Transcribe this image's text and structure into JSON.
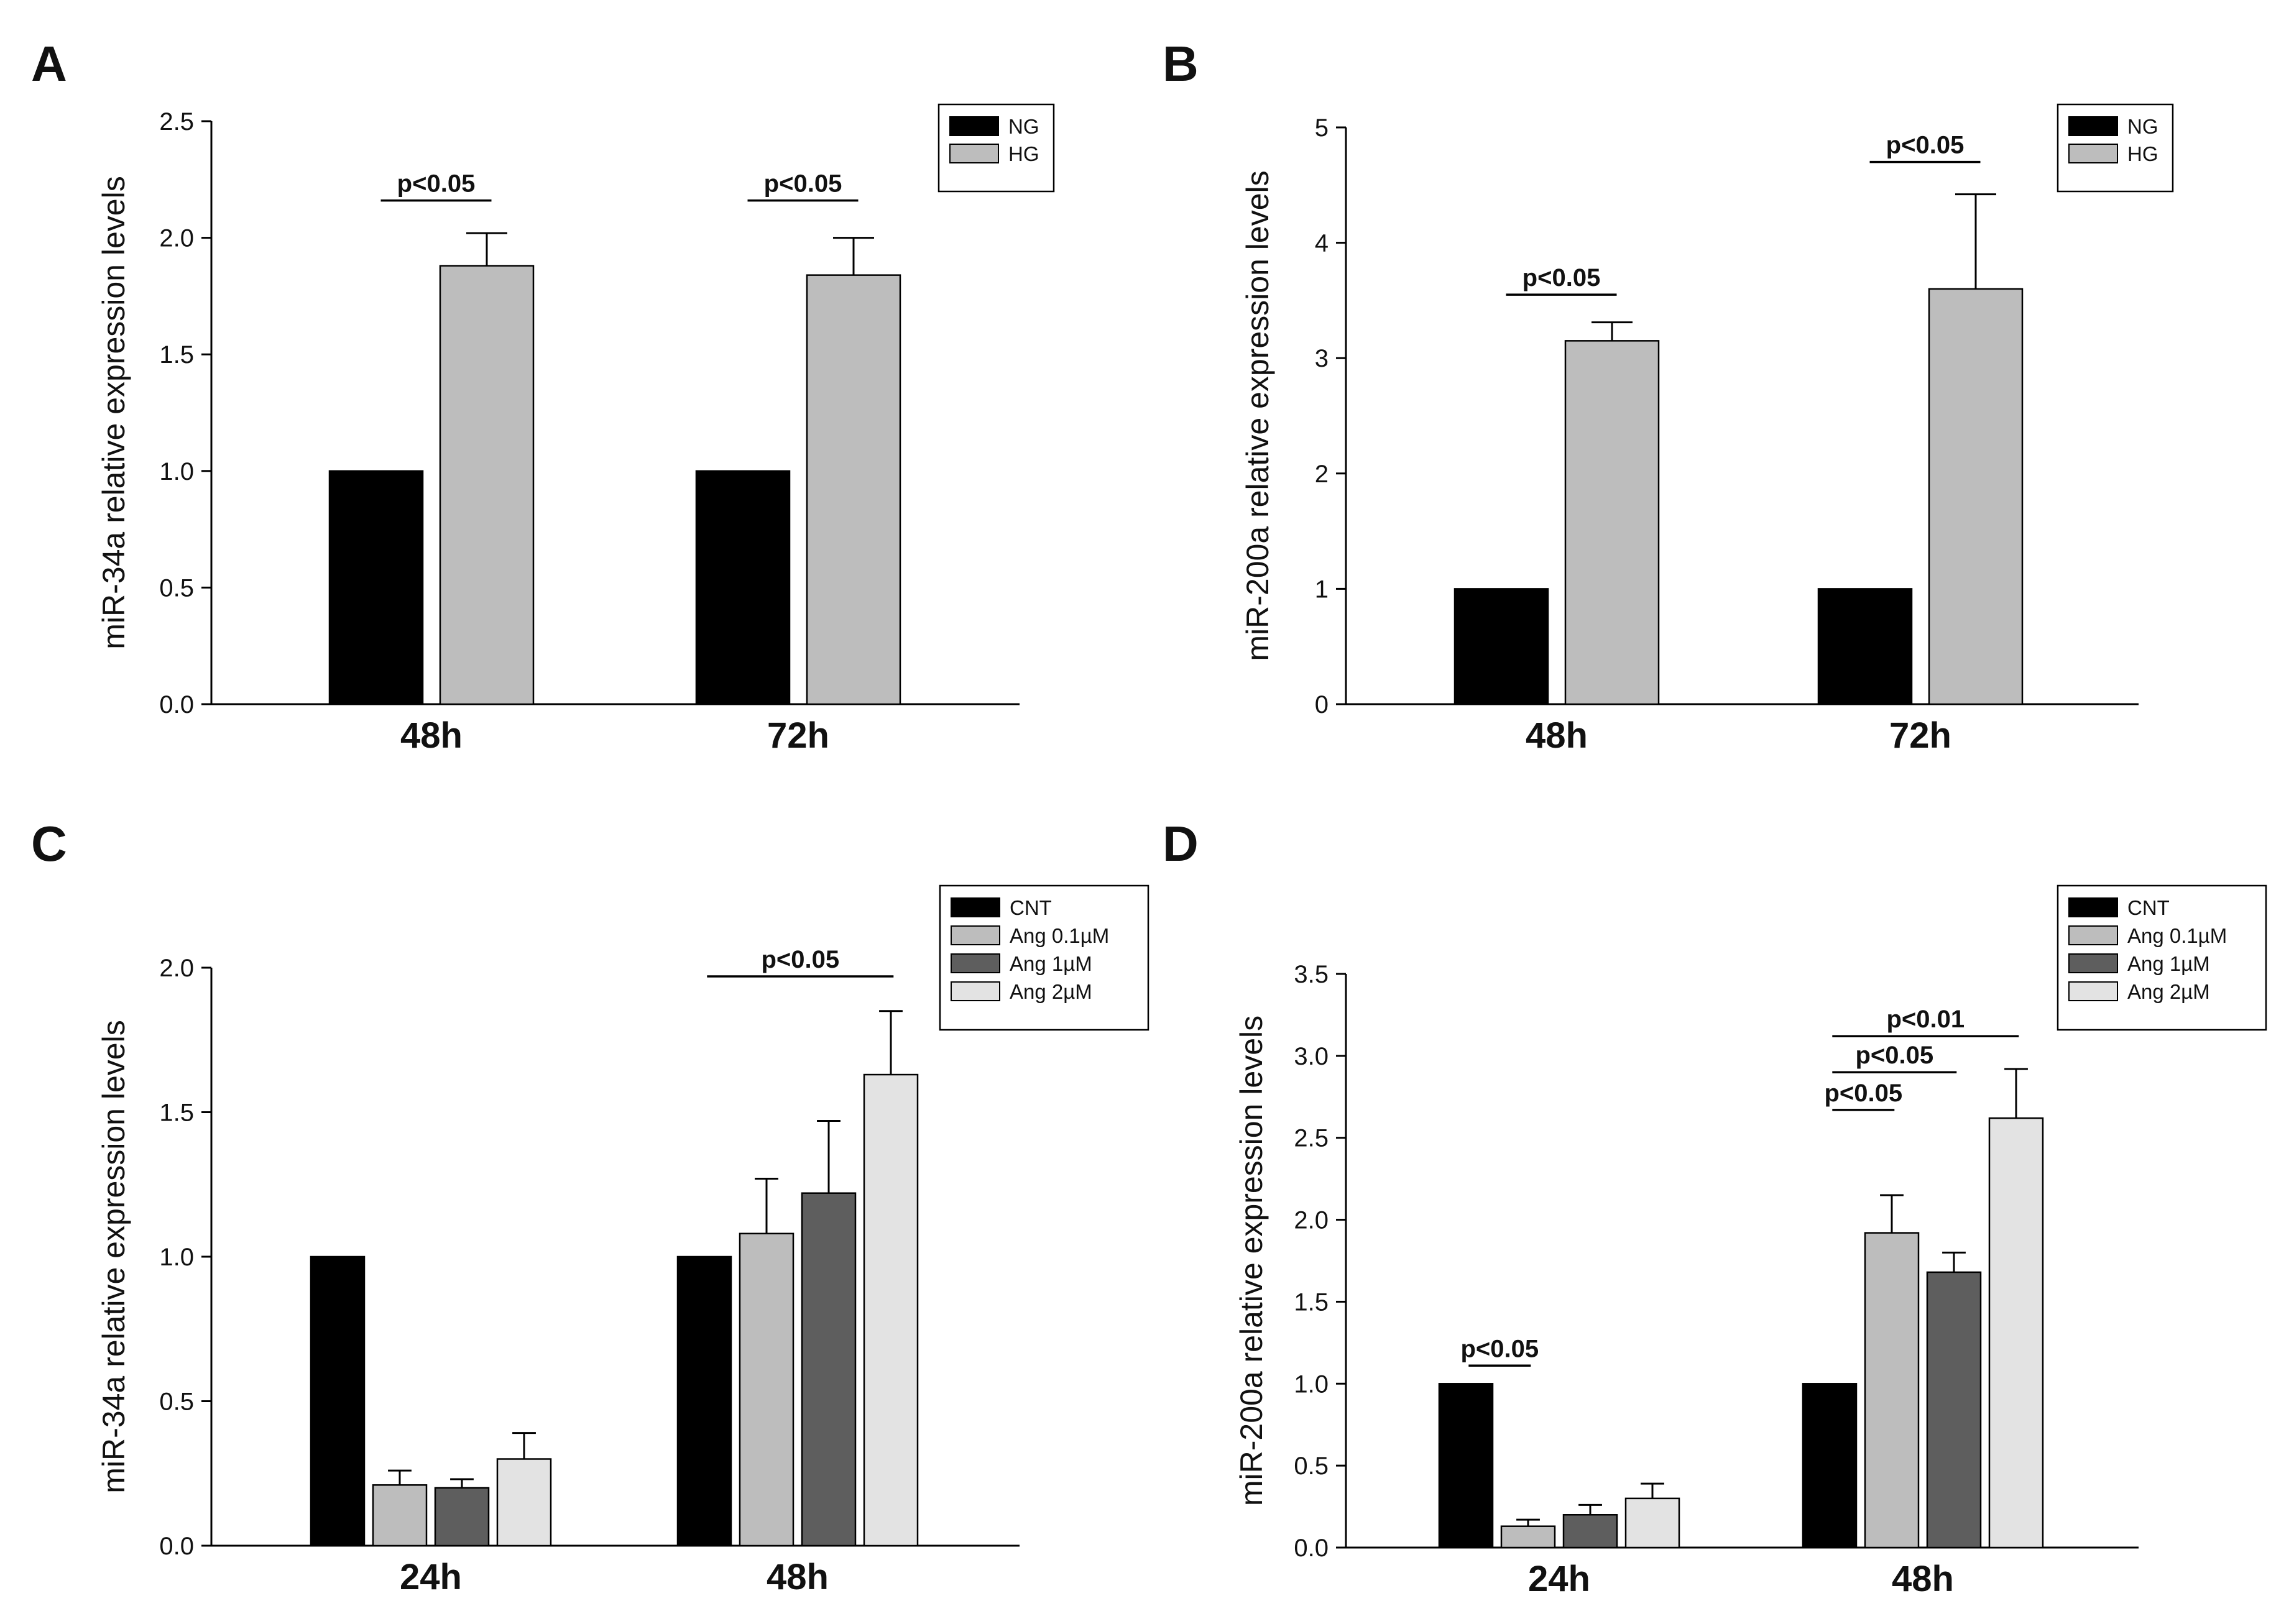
{
  "chart_data": [
    {
      "panel": "A",
      "type": "bar",
      "ylabel": "miR-34a relative expression levels",
      "ylim": [
        0,
        2.5
      ],
      "yticks": [
        0.0,
        0.5,
        1.0,
        1.5,
        2.0,
        2.5
      ],
      "ytick_labels": [
        "0.0",
        "0.5",
        "1.0",
        "1.5",
        "2.0",
        "2.5"
      ],
      "categories": [
        "48h",
        "72h"
      ],
      "legend_position": "top-right",
      "series": [
        {
          "name": "NG",
          "color": "#000000",
          "values": [
            1.0,
            1.0
          ],
          "errors": [
            0,
            0
          ]
        },
        {
          "name": "HG",
          "color": "#bdbdbd",
          "values": [
            1.88,
            1.84
          ],
          "errors": [
            0.14,
            0.16
          ]
        }
      ],
      "annotations": [
        {
          "text": "p<0.05",
          "category": 0,
          "from_series": 0,
          "to_series": 1,
          "y": 2.16
        },
        {
          "text": "p<0.05",
          "category": 1,
          "from_series": 0,
          "to_series": 1,
          "y": 2.16
        }
      ]
    },
    {
      "panel": "B",
      "type": "bar",
      "ylabel": "miR-200a relative expression levels",
      "ylim": [
        0,
        5
      ],
      "yticks": [
        0,
        1,
        2,
        3,
        4,
        5
      ],
      "ytick_labels": [
        "0",
        "1",
        "2",
        "3",
        "4",
        "5"
      ],
      "categories": [
        "48h",
        "72h"
      ],
      "legend_position": "top-right",
      "series": [
        {
          "name": "NG",
          "color": "#000000",
          "values": [
            1.0,
            1.0
          ],
          "errors": [
            0,
            0
          ]
        },
        {
          "name": "HG",
          "color": "#bdbdbd",
          "values": [
            3.15,
            3.6
          ],
          "errors": [
            0.16,
            0.82
          ]
        }
      ],
      "annotations": [
        {
          "text": "p<0.05",
          "category": 0,
          "from_series": 0,
          "to_series": 1,
          "y": 3.55
        },
        {
          "text": "p<0.05",
          "category": 1,
          "from_series": 0,
          "to_series": 1,
          "y": 4.7
        }
      ]
    },
    {
      "panel": "C",
      "type": "bar",
      "ylabel": "miR-34a relative expression levels",
      "ylim": [
        0,
        2.0
      ],
      "yticks": [
        0.0,
        0.5,
        1.0,
        1.5,
        2.0
      ],
      "ytick_labels": [
        "0.0",
        "0.5",
        "1.0",
        "1.5",
        "2.0"
      ],
      "categories": [
        "24h",
        "48h"
      ],
      "legend_position": "top-right",
      "series": [
        {
          "name": "CNT",
          "color": "#000000",
          "values": [
            1.0,
            1.0
          ],
          "errors": [
            0,
            0
          ]
        },
        {
          "name": "Ang 0.1µM",
          "color": "#bdbdbd",
          "values": [
            0.21,
            1.08
          ],
          "errors": [
            0.05,
            0.19
          ]
        },
        {
          "name": "Ang 1µM",
          "color": "#5e5e5e",
          "values": [
            0.2,
            1.22
          ],
          "errors": [
            0.03,
            0.25
          ]
        },
        {
          "name": "Ang 2µM",
          "color": "#e3e3e3",
          "values": [
            0.3,
            1.63
          ],
          "errors": [
            0.09,
            0.22
          ]
        }
      ],
      "annotations": [
        {
          "text": "p<0.05",
          "category": 1,
          "from_series": 0,
          "to_series": 3,
          "y": 1.97
        }
      ]
    },
    {
      "panel": "D",
      "type": "bar",
      "ylabel": "miR-200a relative expression levels",
      "ylim": [
        0,
        3.5
      ],
      "yticks": [
        0.0,
        0.5,
        1.0,
        1.5,
        2.0,
        2.5,
        3.0,
        3.5
      ],
      "ytick_labels": [
        "0.0",
        "0.5",
        "1.0",
        "1.5",
        "2.0",
        "2.5",
        "3.0",
        "3.5"
      ],
      "categories": [
        "24h",
        "48h"
      ],
      "legend_position": "top-right",
      "series": [
        {
          "name": "CNT",
          "color": "#000000",
          "values": [
            1.0,
            1.0
          ],
          "errors": [
            0,
            0
          ]
        },
        {
          "name": "Ang 0.1µM",
          "color": "#bdbdbd",
          "values": [
            0.13,
            1.92
          ],
          "errors": [
            0.04,
            0.23
          ]
        },
        {
          "name": "Ang 1µM",
          "color": "#5e5e5e",
          "values": [
            0.2,
            1.68
          ],
          "errors": [
            0.06,
            0.12
          ]
        },
        {
          "name": "Ang 2µM",
          "color": "#e3e3e3",
          "values": [
            0.3,
            2.62
          ],
          "errors": [
            0.09,
            0.3
          ]
        }
      ],
      "annotations": [
        {
          "text": "p<0.05",
          "category": 0,
          "from_series": 0,
          "to_series": 1,
          "y": 1.11
        },
        {
          "text": "p<0.01",
          "category": 1,
          "from_series": 0,
          "to_series": 3,
          "y": 3.12
        },
        {
          "text": "p<0.05",
          "category": 1,
          "from_series": 0,
          "to_series": 2,
          "y": 2.9
        },
        {
          "text": "p<0.05",
          "category": 1,
          "from_series": 0,
          "to_series": 1,
          "y": 2.67
        }
      ]
    }
  ]
}
